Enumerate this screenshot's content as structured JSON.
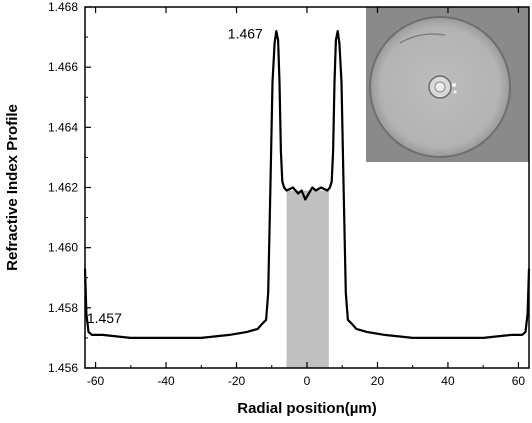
{
  "chart_data": {
    "type": "line",
    "xlabel": "Radial position(µm)",
    "ylabel": "Refractive Index Profile",
    "xlim": [
      -63,
      63
    ],
    "ylim": [
      1.456,
      1.468
    ],
    "x_ticks": [
      -60,
      -40,
      -20,
      0,
      20,
      40,
      60
    ],
    "y_ticks": [
      1.456,
      1.458,
      1.46,
      1.462,
      1.464,
      1.466,
      1.468
    ],
    "x_tick_labels": [
      "-60",
      "-40",
      "-20",
      "0",
      "20",
      "40",
      "60"
    ],
    "y_tick_labels": [
      "1.456",
      "1.458",
      "1.460",
      "1.462",
      "1.464",
      "1.466",
      "1.468"
    ],
    "grid": false,
    "line_color": "#000000",
    "shaded_region": {
      "x": [
        -5.8,
        6.2
      ],
      "color": "#c0c0c0"
    },
    "series": [
      {
        "x": [
          -63,
          -62.6,
          -62,
          -61,
          -58,
          -50,
          -40,
          -30,
          -22,
          -17,
          -14,
          -12.5,
          -11.6,
          -11.0,
          -10.4,
          -9.8,
          -9.2,
          -8.7,
          -8.2,
          -7.8,
          -7.4,
          -7.0,
          -6.5,
          -5.8,
          -4,
          -2.5,
          -1.5,
          -0.5,
          0,
          0.5,
          1.5,
          2.5,
          4,
          5.8,
          6.5,
          7.0,
          7.4,
          7.8,
          8.2,
          8.7,
          9.2,
          9.8,
          10.4,
          11.0,
          11.6,
          12.5,
          14,
          17,
          22,
          30,
          40,
          50,
          58,
          61,
          62,
          62.6,
          63
        ],
        "values": [
          1.4593,
          1.4578,
          1.4572,
          1.4571,
          1.4571,
          1.457,
          1.457,
          1.457,
          1.4571,
          1.4572,
          1.4573,
          1.4575,
          1.4576,
          1.4585,
          1.462,
          1.4655,
          1.4668,
          1.4672,
          1.4669,
          1.4655,
          1.4632,
          1.4622,
          1.462,
          1.4619,
          1.462,
          1.4618,
          1.4619,
          1.4616,
          1.4617,
          1.4618,
          1.462,
          1.4619,
          1.462,
          1.4619,
          1.462,
          1.4622,
          1.4632,
          1.4655,
          1.4669,
          1.4672,
          1.4668,
          1.4655,
          1.462,
          1.4585,
          1.4576,
          1.4575,
          1.4573,
          1.4572,
          1.4571,
          1.457,
          1.457,
          1.457,
          1.4571,
          1.4571,
          1.4572,
          1.4578,
          1.4593
        ]
      }
    ],
    "annotations": [
      {
        "text": "1.467",
        "x": -17.5,
        "y": 1.46695
      },
      {
        "text": "1.457",
        "x": -57.5,
        "y": 1.4575
      }
    ],
    "inset": {
      "description_colors": {
        "background": "#8a8a8a",
        "disk": "#b3b3b3",
        "edge": "#6f6f6f"
      }
    }
  }
}
